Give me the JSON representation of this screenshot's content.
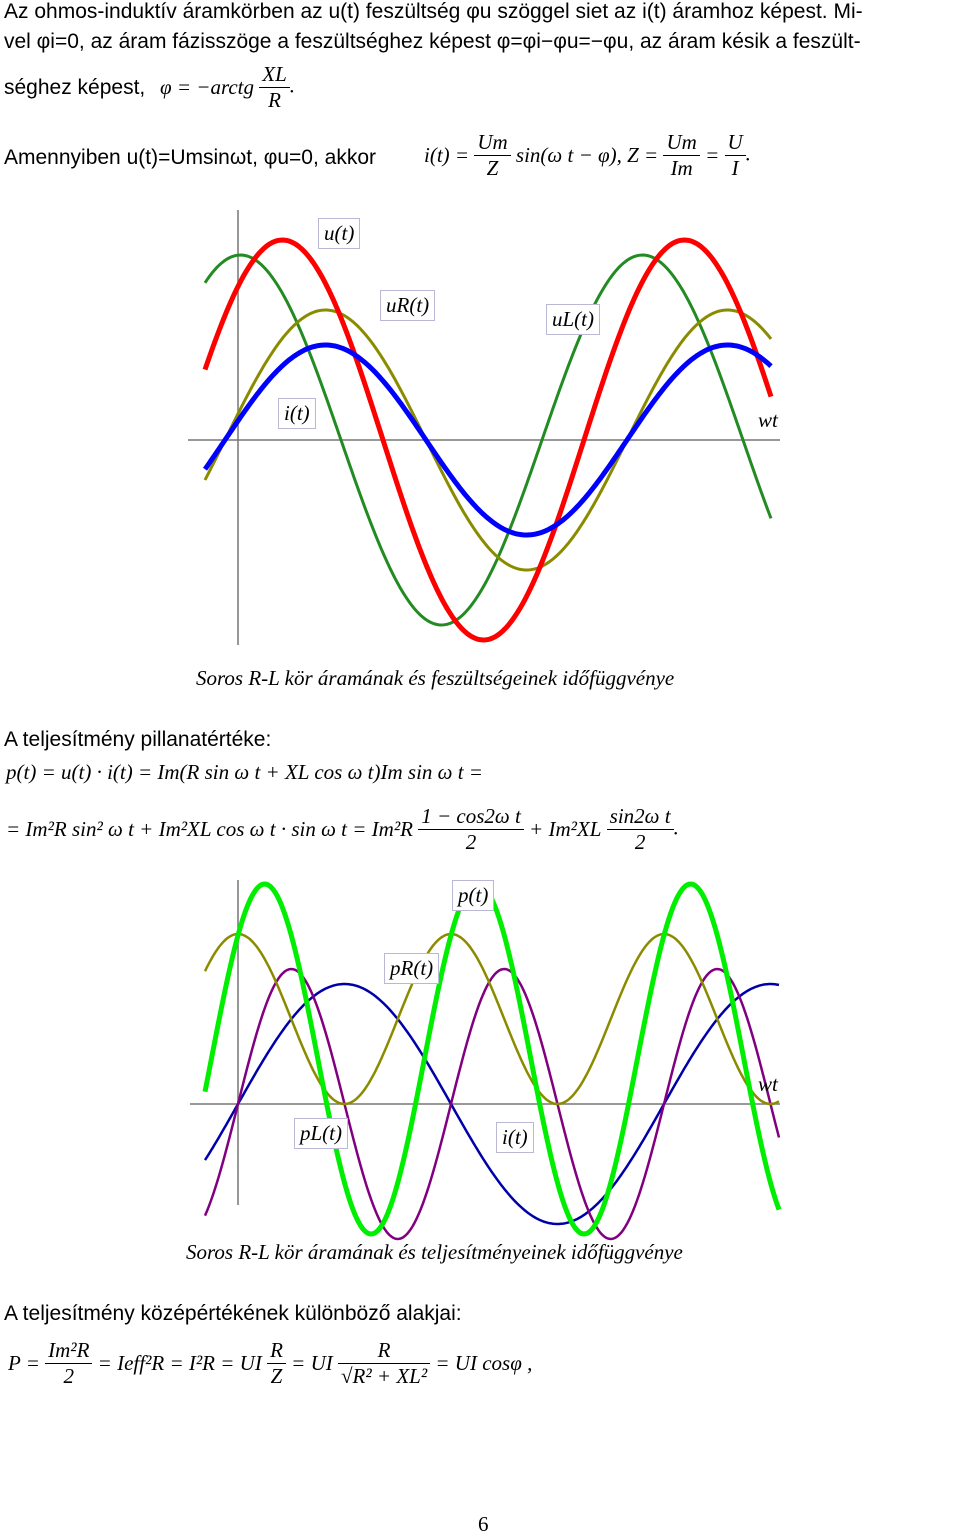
{
  "intro": {
    "line1": "Az ohmos-induktív áramkörben az u(t) feszültség φu szöggel siet az i(t) áramhoz képest. Mi-",
    "line2": "vel φi=0, az áram fázisszöge a feszültséghez képest φ=φi−φu=−φu, az áram késik a feszült-",
    "line3_prefix": "séghez képest,",
    "phi_eq": "φ = −arctg",
    "frac_num": "XL",
    "frac_den": "R",
    "line4_prefix": "Amennyiben u(t)=Umsinωt, φu=0, akkor",
    "i_eq": "i(t) =",
    "um": "Um",
    "z": "Z",
    "sin_part": "sin(ω t − φ),",
    "z_eq": "Z =",
    "im": "Im",
    "eq": "=",
    "u": "U",
    "i": "I"
  },
  "chart1": {
    "labels": [
      "u(t)",
      "uR(t)",
      "uL(t)",
      "i(t)",
      "wt"
    ],
    "caption": "Soros R-L kör áramának és feszültségeinek időfüggvénye",
    "colors": {
      "u": "#ff0000",
      "uR": "#8b8b00",
      "uL": "#228b22",
      "i": "#0000ff"
    }
  },
  "power": {
    "heading": "A teljesítmény pillanatértéke:",
    "line1": "p(t) = u(t) · i(t) = Im(R sin ω t + XL cos ω t)Im sin ω t =",
    "line2_a": "= Im²R sin² ω t + Im²XL cos ω t · sin ω t = Im²R",
    "frac1_num": "1 − cos2ω t",
    "frac1_den": "2",
    "plus": "+ Im²XL",
    "frac2_num": "sin2ω t",
    "frac2_den": "2",
    "period": "."
  },
  "chart2": {
    "labels": [
      "p(t)",
      "pR(t)",
      "pL(t)",
      "i(t)",
      "wt"
    ],
    "caption": "Soros R-L kör áramának és teljesítményeinek időfüggvénye",
    "colors": {
      "p": "#00ee00",
      "pR": "#8b8b00",
      "pL": "#800080",
      "i": "#0000aa"
    }
  },
  "average": {
    "heading": "A teljesítmény középértékének különböző alakjai:",
    "eq_a": "P =",
    "frac_a_num": "Im²R",
    "frac_a_den": "2",
    "eq_b": "= Ieff²R = I²R = UI",
    "frac_b_num": "R",
    "frac_b_den": "Z",
    "eq_c": "= UI",
    "frac_c_num": "R",
    "frac_c_den": "√R² + XL²",
    "eq_d": "= UI cosφ ,"
  },
  "page_number": "6"
}
